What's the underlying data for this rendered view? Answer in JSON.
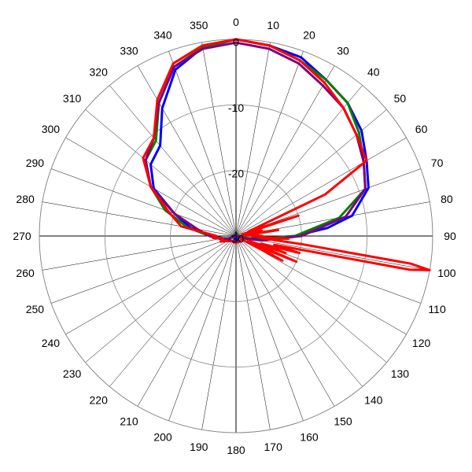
{
  "chart_data": {
    "type": "polar-line",
    "angle_labels": [
      "0",
      "10",
      "20",
      "30",
      "40",
      "50",
      "60",
      "70",
      "80",
      "90",
      "100",
      "110",
      "120",
      "130",
      "140",
      "150",
      "160",
      "170",
      "180",
      "190",
      "200",
      "210",
      "220",
      "230",
      "240",
      "250",
      "260",
      "270",
      "280",
      "290",
      "300",
      "310",
      "320",
      "330",
      "340",
      "350"
    ],
    "radial_axis": {
      "min": -30,
      "max": 0,
      "ticks": [
        -30,
        -20,
        -10,
        0
      ],
      "tick_labels": [
        "-30",
        "-20",
        "-10",
        "0"
      ]
    },
    "grid": true,
    "angle_direction": "clockwise",
    "zero_position": "top",
    "series": [
      {
        "color": "#0000ff",
        "angles": [
          0,
          10,
          20,
          30,
          40,
          50,
          60,
          70,
          80,
          85,
          90,
          95,
          100,
          110,
          120,
          140,
          160,
          180,
          200,
          220,
          240,
          250,
          260,
          265,
          270,
          280,
          290,
          300,
          310,
          320,
          330,
          340,
          350
        ],
        "values": [
          0,
          -0.5,
          -1,
          -2.5,
          -3.5,
          -5,
          -7,
          -8.5,
          -12,
          -16,
          -21,
          -26,
          -28,
          -30,
          -30,
          -30,
          -29,
          -30,
          -29,
          -29,
          -28.5,
          -28,
          -27.5,
          -27,
          -26,
          -23,
          -20,
          -15.5,
          -13,
          -12,
          -7.5,
          -3,
          -0.8
        ]
      },
      {
        "color": "#008000",
        "angles": [
          0,
          10,
          20,
          30,
          40,
          50,
          60,
          70,
          80,
          90,
          100,
          110,
          140,
          180,
          220,
          250,
          260,
          270,
          280,
          290,
          300,
          310,
          320,
          330,
          340,
          350
        ],
        "values": [
          0,
          -0.5,
          -1.5,
          -2.5,
          -3.5,
          -5.5,
          -7.5,
          -9,
          -14,
          -21,
          -27,
          -30,
          -30,
          -30,
          -30,
          -29,
          -28,
          -26,
          -22.5,
          -18.5,
          -15,
          -12,
          -11,
          -6.5,
          -2.5,
          -0.8
        ]
      },
      {
        "color": "#800080",
        "angles": [
          0,
          10,
          20,
          30,
          40,
          50,
          60,
          70,
          80,
          90,
          100,
          110,
          140,
          180,
          220,
          250,
          260,
          270,
          280,
          290,
          300,
          310,
          320,
          330,
          340,
          350
        ],
        "values": [
          -0.5,
          -1,
          -2,
          -3.5,
          -4.5,
          -6,
          -7.5,
          -9,
          -13,
          -20,
          -26,
          -29,
          -30,
          -30,
          -30,
          -28.5,
          -28,
          -26,
          -24,
          -20,
          -15,
          -12,
          -10.5,
          -6.5,
          -2.5,
          -1
        ]
      },
      {
        "color": "#ff0000",
        "angles": [
          0,
          10,
          20,
          30,
          40,
          50,
          60,
          65,
          70,
          72,
          75,
          78,
          80,
          82,
          84,
          86,
          88,
          90,
          91,
          93,
          95,
          97,
          99,
          100,
          101,
          103,
          105,
          107,
          109,
          111,
          113,
          116,
          118,
          120,
          140,
          180,
          220,
          240,
          250,
          260,
          265,
          270,
          280,
          290,
          300,
          310,
          320,
          330,
          340,
          350
        ],
        "values": [
          0,
          -0.5,
          -1.5,
          -3,
          -4.5,
          -6,
          -7,
          -15,
          -28,
          -20,
          -29,
          -26,
          -29,
          -23.5,
          -28,
          -29,
          -27,
          -26,
          -27.5,
          -22,
          -26,
          -20,
          -3,
          0,
          -3,
          -24,
          -20,
          -26,
          -22,
          -28,
          -20,
          -27,
          -22,
          -29,
          -29,
          -29,
          -29,
          -28.5,
          -27.5,
          -28,
          -26.5,
          -27,
          -21.5,
          -19,
          -15,
          -11.5,
          -10.5,
          -6,
          -2,
          -0.5
        ]
      }
    ]
  }
}
